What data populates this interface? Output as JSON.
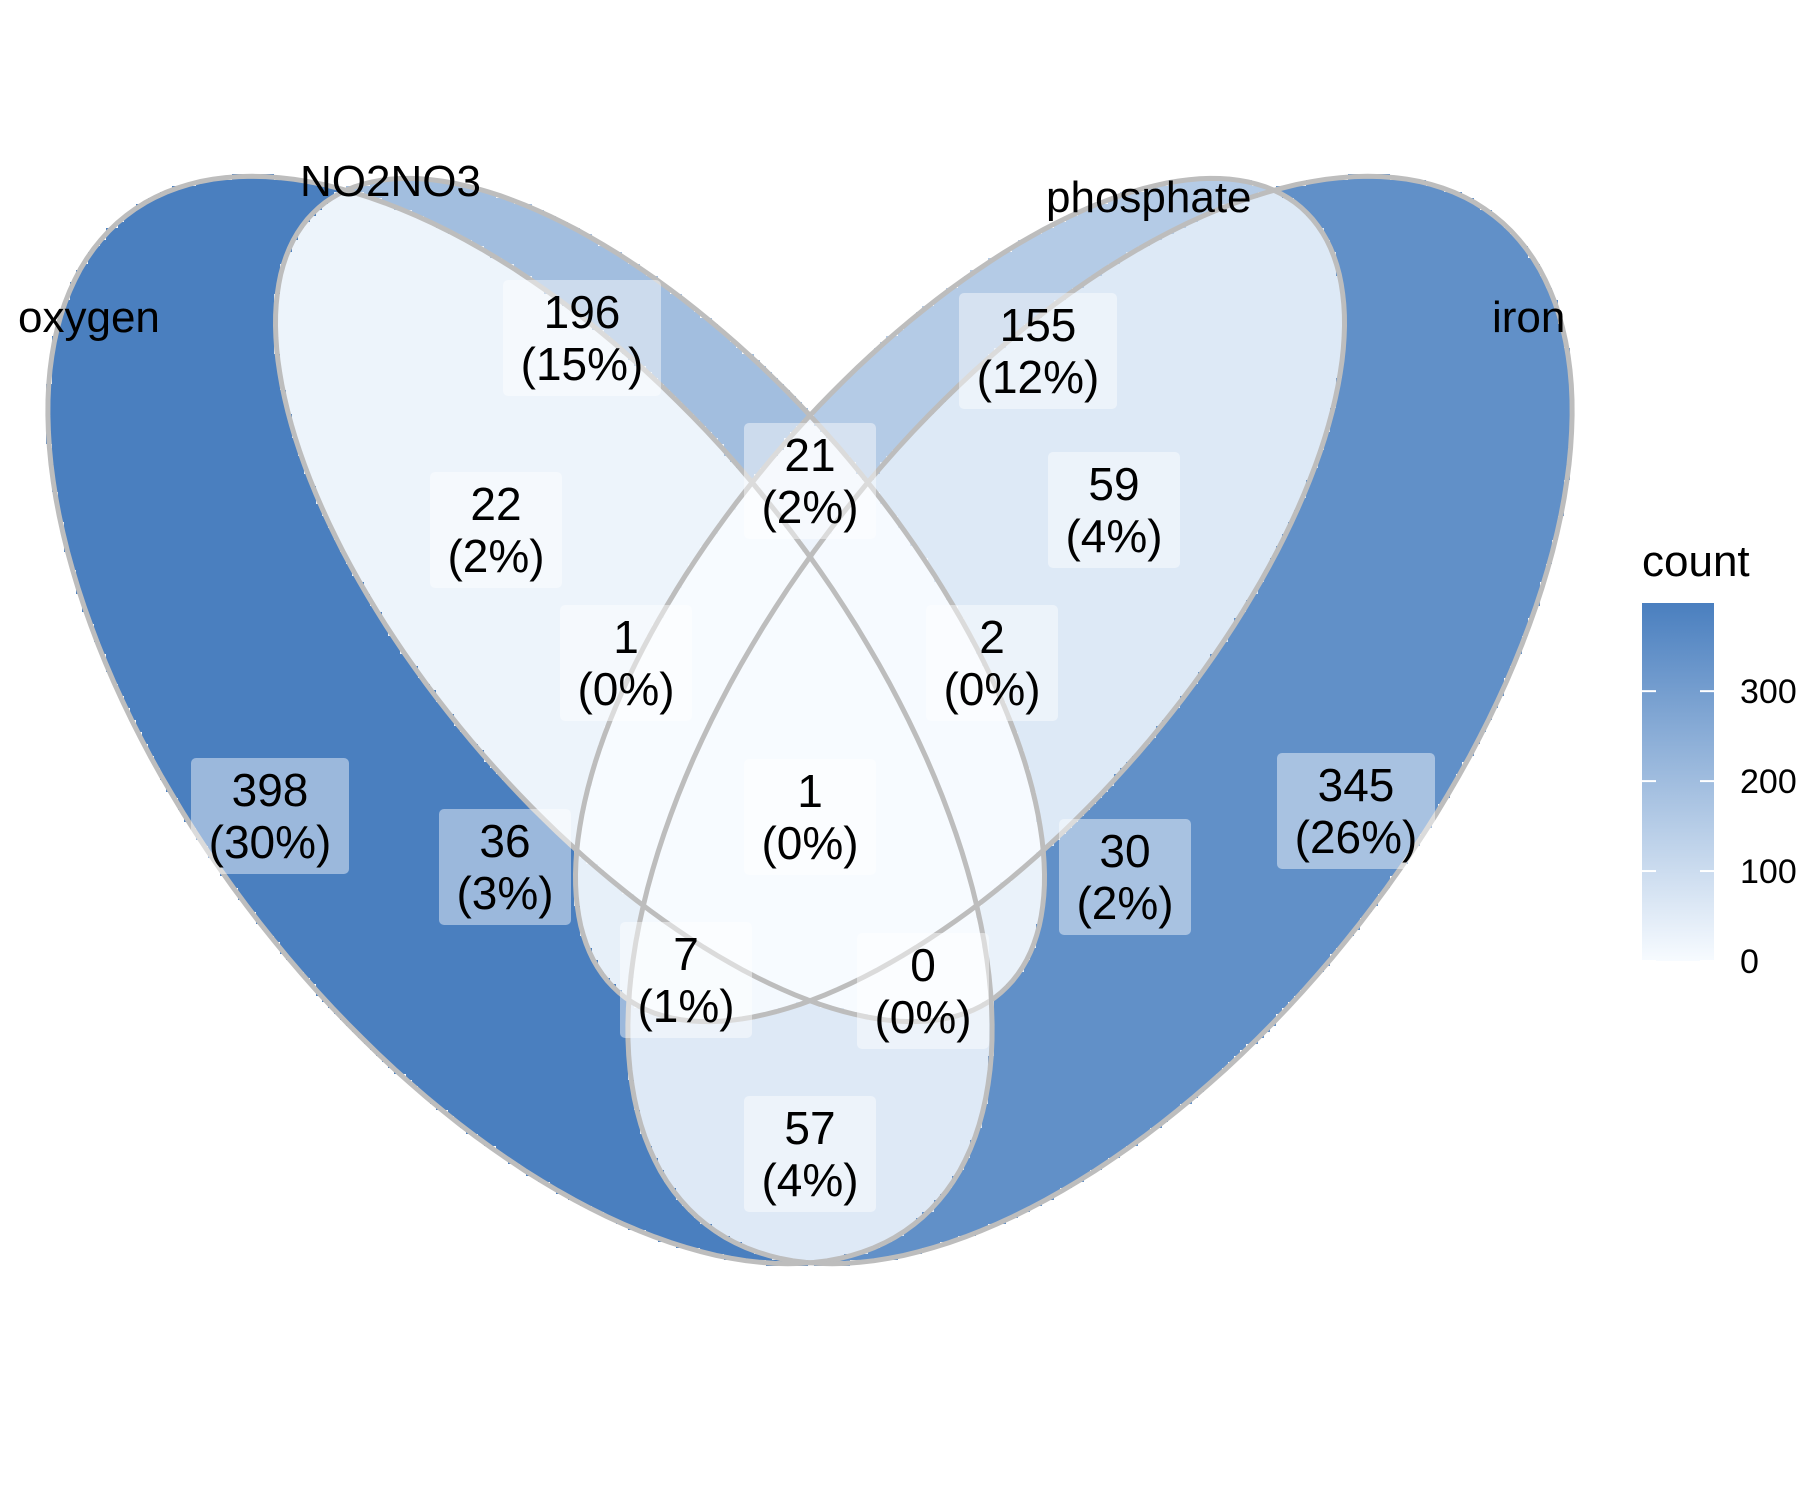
{
  "diagram": {
    "type": "venn-4",
    "sets": [
      {
        "id": "oxygen",
        "label": "oxygen"
      },
      {
        "id": "no2no3",
        "label": "NO2NO3"
      },
      {
        "id": "phosphate",
        "label": "phosphate"
      },
      {
        "id": "iron",
        "label": "iron"
      }
    ],
    "regions": [
      {
        "id": "oxygen-only",
        "sets": [
          "oxygen"
        ],
        "count": 398,
        "count_label": "398",
        "percent_label": "(30%)"
      },
      {
        "id": "no2no3-only",
        "sets": [
          "no2no3"
        ],
        "count": 196,
        "count_label": "196",
        "percent_label": "(15%)"
      },
      {
        "id": "phosphate-only",
        "sets": [
          "phosphate"
        ],
        "count": 155,
        "count_label": "155",
        "percent_label": "(12%)"
      },
      {
        "id": "iron-only",
        "sets": [
          "iron"
        ],
        "count": 345,
        "count_label": "345",
        "percent_label": "(26%)"
      },
      {
        "id": "oxygen-no2no3",
        "sets": [
          "oxygen",
          "no2no3"
        ],
        "count": 22,
        "count_label": "22",
        "percent_label": "(2%)"
      },
      {
        "id": "no2no3-phosphate",
        "sets": [
          "no2no3",
          "phosphate"
        ],
        "count": 21,
        "count_label": "21",
        "percent_label": "(2%)"
      },
      {
        "id": "phosphate-iron",
        "sets": [
          "phosphate",
          "iron"
        ],
        "count": 59,
        "count_label": "59",
        "percent_label": "(4%)"
      },
      {
        "id": "oxygen-no2no3-phosphate",
        "sets": [
          "oxygen",
          "no2no3",
          "phosphate"
        ],
        "count": 1,
        "count_label": "1",
        "percent_label": "(0%)"
      },
      {
        "id": "no2no3-phosphate-iron",
        "sets": [
          "no2no3",
          "phosphate",
          "iron"
        ],
        "count": 2,
        "count_label": "2",
        "percent_label": "(0%)"
      },
      {
        "id": "oxygen-phosphate",
        "sets": [
          "oxygen",
          "phosphate"
        ],
        "count": 36,
        "count_label": "36",
        "percent_label": "(3%)"
      },
      {
        "id": "all-four",
        "sets": [
          "oxygen",
          "no2no3",
          "phosphate",
          "iron"
        ],
        "count": 1,
        "count_label": "1",
        "percent_label": "(0%)"
      },
      {
        "id": "no2no3-iron",
        "sets": [
          "no2no3",
          "iron"
        ],
        "count": 30,
        "count_label": "30",
        "percent_label": "(2%)"
      },
      {
        "id": "oxygen-phosphate-iron",
        "sets": [
          "oxygen",
          "phosphate",
          "iron"
        ],
        "count": 7,
        "count_label": "7",
        "percent_label": "(1%)"
      },
      {
        "id": "oxygen-no2no3-iron",
        "sets": [
          "oxygen",
          "no2no3",
          "iron"
        ],
        "count": 0,
        "count_label": "0",
        "percent_label": "(0%)"
      },
      {
        "id": "oxygen-iron",
        "sets": [
          "oxygen",
          "iron"
        ],
        "count": 57,
        "count_label": "57",
        "percent_label": "(4%)"
      }
    ],
    "fill_scale": {
      "low_color": "#f7fbff",
      "high_color": "#4a7fbf",
      "min": 0,
      "max": 398
    },
    "outline_color": "#bdbdbd",
    "label_box_color": "#ffffff",
    "label_box_opacity": 0.45
  },
  "legend": {
    "title": "count",
    "ticks": [
      {
        "value": 0,
        "label": "0"
      },
      {
        "value": 100,
        "label": "100"
      },
      {
        "value": 200,
        "label": "200"
      },
      {
        "value": 300,
        "label": "300"
      }
    ]
  }
}
